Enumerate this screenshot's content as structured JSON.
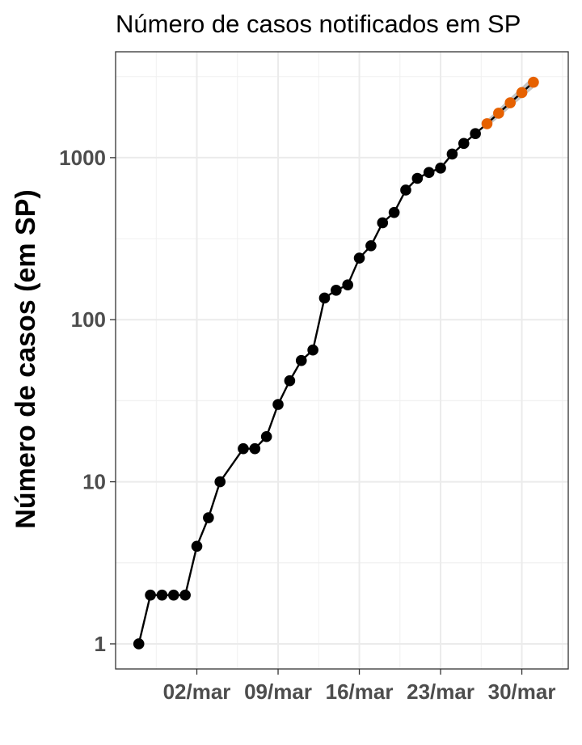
{
  "chart_data": {
    "type": "line",
    "title": "Número de casos notificados em SP",
    "xlabel": "",
    "ylabel": "Número de casos (em SP)",
    "yscale": "log10",
    "ylim": [
      0.7,
      4500
    ],
    "xlim": [
      "2020-02-24",
      "2020-04-03"
    ],
    "grid": true,
    "x_ticks": [
      {
        "date": "2020-03-02",
        "label": "02/mar"
      },
      {
        "date": "2020-03-09",
        "label": "09/mar"
      },
      {
        "date": "2020-03-16",
        "label": "16/mar"
      },
      {
        "date": "2020-03-23",
        "label": "23/mar"
      },
      {
        "date": "2020-03-30",
        "label": "30/mar"
      }
    ],
    "y_ticks": [
      {
        "value": 1,
        "label": "1"
      },
      {
        "value": 10,
        "label": "10"
      },
      {
        "value": 100,
        "label": "100"
      },
      {
        "value": 1000,
        "label": "1000"
      }
    ],
    "series": [
      {
        "color": "#000000",
        "points": [
          {
            "x": "2020-02-26",
            "y": 1
          },
          {
            "x": "2020-02-27",
            "y": 2
          },
          {
            "x": "2020-02-28",
            "y": 2
          },
          {
            "x": "2020-02-29",
            "y": 2
          },
          {
            "x": "2020-03-01",
            "y": 2
          },
          {
            "x": "2020-03-02",
            "y": 4
          },
          {
            "x": "2020-03-03",
            "y": 6
          },
          {
            "x": "2020-03-04",
            "y": 10
          },
          {
            "x": "2020-03-06",
            "y": 16
          },
          {
            "x": "2020-03-07",
            "y": 16
          },
          {
            "x": "2020-03-08",
            "y": 19
          },
          {
            "x": "2020-03-09",
            "y": 30
          },
          {
            "x": "2020-03-10",
            "y": 42
          },
          {
            "x": "2020-03-11",
            "y": 56
          },
          {
            "x": "2020-03-12",
            "y": 65
          },
          {
            "x": "2020-03-13",
            "y": 136
          },
          {
            "x": "2020-03-14",
            "y": 152
          },
          {
            "x": "2020-03-15",
            "y": 164
          },
          {
            "x": "2020-03-16",
            "y": 240
          },
          {
            "x": "2020-03-17",
            "y": 286
          },
          {
            "x": "2020-03-18",
            "y": 396
          },
          {
            "x": "2020-03-19",
            "y": 459
          },
          {
            "x": "2020-03-20",
            "y": 631
          },
          {
            "x": "2020-03-21",
            "y": 745
          },
          {
            "x": "2020-03-22",
            "y": 810
          },
          {
            "x": "2020-03-23",
            "y": 862
          },
          {
            "x": "2020-03-24",
            "y": 1052
          },
          {
            "x": "2020-03-25",
            "y": 1223
          },
          {
            "x": "2020-03-26",
            "y": 1406
          }
        ]
      },
      {
        "color": "#e66100",
        "band_color": "#bdbdbd",
        "points": [
          {
            "x": "2020-03-27",
            "y": 1620,
            "lo": 1540,
            "hi": 1710
          },
          {
            "x": "2020-03-28",
            "y": 1880,
            "lo": 1770,
            "hi": 2000
          },
          {
            "x": "2020-03-29",
            "y": 2180,
            "lo": 2040,
            "hi": 2340
          },
          {
            "x": "2020-03-30",
            "y": 2520,
            "lo": 2340,
            "hi": 2730
          },
          {
            "x": "2020-03-31",
            "y": 2920,
            "lo": 2690,
            "hi": 3180
          }
        ]
      }
    ]
  }
}
